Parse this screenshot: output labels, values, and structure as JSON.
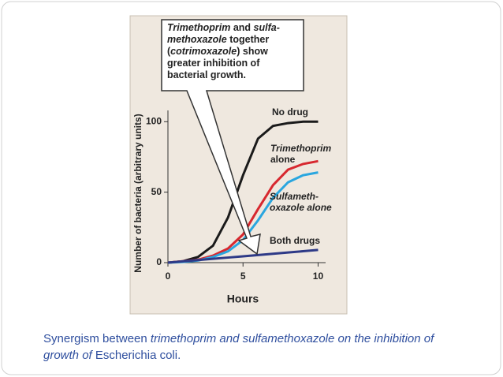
{
  "chart_data": {
    "type": "line",
    "callout": [
      {
        "text": "Trimethoprim",
        "italic": true
      },
      {
        "text": " and ",
        "italic": false
      },
      {
        "text": "sulfa-methoxazole",
        "italic": true
      },
      {
        "text": " together (",
        "italic": false
      },
      {
        "text": "cotrimoxazole",
        "italic": true
      },
      {
        "text": ") show greater inhibition of bacterial growth.",
        "italic": false
      }
    ],
    "y_label": "Number of bacteria (arbitrary units)",
    "x_label": "Hours",
    "x": [
      0,
      1,
      2,
      3,
      4,
      5,
      6,
      7,
      8,
      9,
      10
    ],
    "xlim": [
      0,
      10.5
    ],
    "xticks": [
      0,
      5,
      10
    ],
    "ylim": [
      0,
      108
    ],
    "yticks": [
      0,
      50,
      100
    ],
    "series": [
      {
        "name": "No drug",
        "color": "#1a1a1a",
        "values": [
          0,
          1,
          4,
          12,
          32,
          62,
          88,
          97,
          99,
          100,
          100
        ]
      },
      {
        "name": "Trimethoprim alone",
        "color": "#d7282f",
        "values": [
          0,
          1,
          2,
          5,
          10,
          20,
          38,
          55,
          66,
          70,
          72
        ]
      },
      {
        "name": "Sulfameth-oxazole alone",
        "color": "#2aa6df",
        "values": [
          0,
          0.5,
          1.5,
          4,
          8,
          16,
          30,
          46,
          57,
          62,
          64
        ]
      },
      {
        "name": "Both drugs",
        "color": "#2e3a87",
        "values": [
          0,
          0.9,
          1.8,
          2.7,
          3.6,
          4.5,
          5.4,
          6.3,
          7.2,
          8.1,
          9
        ]
      }
    ]
  },
  "caption": [
    {
      "text": "Synergism between ",
      "italic": false
    },
    {
      "text": "trimethoprim and sulfamethoxazole on the inhibition of growth of",
      "italic": true
    },
    {
      "text": " Escherichia coli.",
      "italic": false
    }
  ]
}
